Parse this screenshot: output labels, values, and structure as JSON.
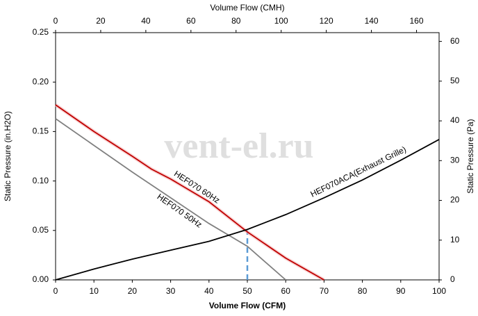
{
  "chart_data": {
    "type": "line",
    "watermark": "vent-el.ru",
    "xlabel": "Volume Flow (CFM)",
    "x2label": "Volume Flow (CMH)",
    "ylabel": "Static Pressure (in.H2O)",
    "y2label": "Static Pressure (Pa)",
    "xlim": [
      0,
      100
    ],
    "xticks": [
      0,
      10,
      20,
      30,
      40,
      50,
      60,
      70,
      80,
      90,
      100
    ],
    "x2lim": [
      0,
      170
    ],
    "x2ticks": [
      0,
      20,
      40,
      60,
      80,
      100,
      120,
      140,
      160
    ],
    "ylim": [
      0,
      0.25
    ],
    "yticks": [
      {
        "value": 0,
        "label": "0.00"
      },
      {
        "value": 0.05,
        "label": "0.05"
      },
      {
        "value": 0.1,
        "label": "0.10"
      },
      {
        "value": 0.15,
        "label": "0.15"
      },
      {
        "value": 0.2,
        "label": "0.20"
      },
      {
        "value": 0.25,
        "label": "0.25"
      }
    ],
    "y2lim": [
      0,
      62.2
    ],
    "y2ticks": [
      0,
      10,
      20,
      30,
      40,
      50,
      60
    ],
    "grid": false,
    "series": [
      {
        "name": "HEF070 60Hz",
        "color": "#c00000",
        "x": [
          0,
          10,
          20,
          25,
          30,
          40,
          50,
          60,
          70
        ],
        "values": [
          0.177,
          0.15,
          0.125,
          0.112,
          0.102,
          0.079,
          0.0485,
          0.022,
          0
        ]
      },
      {
        "name": "HEF070 50Hz",
        "color": "#808080",
        "x": [
          0,
          10,
          20,
          30,
          40,
          50,
          60
        ],
        "values": [
          0.163,
          0.136,
          0.109,
          0.083,
          0.057,
          0.034,
          0
        ]
      },
      {
        "name": "HEF070ACA(Exhaust Grille)",
        "color": "#000000",
        "x": [
          0,
          10,
          20,
          30,
          40,
          50,
          60,
          70,
          80,
          90,
          100
        ],
        "values": [
          0,
          0.011,
          0.021,
          0.03,
          0.039,
          0.051,
          0.066,
          0.083,
          0.101,
          0.121,
          0.142
        ]
      }
    ],
    "operating_point": {
      "x": 50,
      "y": 0.05,
      "color": "#5b9bd5"
    }
  }
}
